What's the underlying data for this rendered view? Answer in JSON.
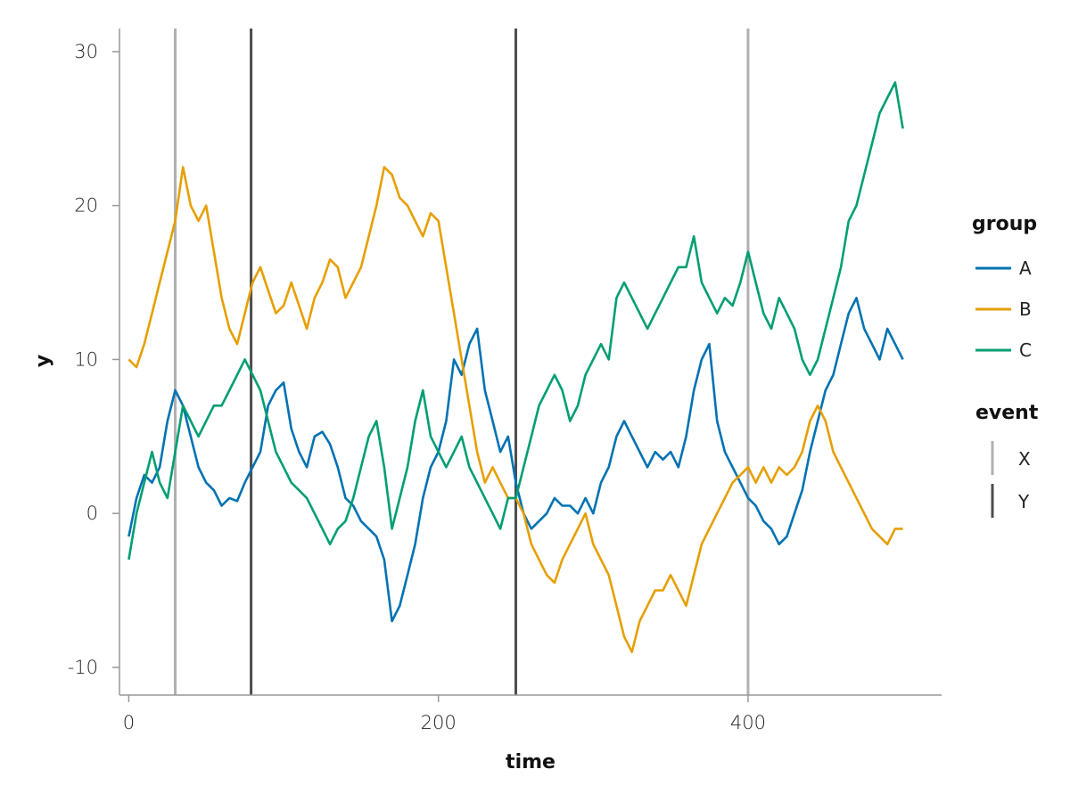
{
  "chart_data": {
    "type": "line",
    "xlabel": "time",
    "ylabel": "y",
    "xlim": [
      -6,
      525
    ],
    "ylim": [
      -11.8,
      31.5
    ],
    "xticks": [
      0,
      200,
      400
    ],
    "yticks": [
      -10,
      0,
      10,
      20,
      30
    ],
    "ytick_labels": [
      "-10",
      "0",
      "10",
      "20",
      "30"
    ],
    "grid": false,
    "legend_position": "right",
    "legends": [
      {
        "title": "group",
        "kind": "line",
        "entries": [
          "A",
          "B",
          "C"
        ]
      },
      {
        "title": "event",
        "kind": "vline",
        "entries": [
          "X",
          "Y"
        ]
      }
    ],
    "series": [
      {
        "name": "A",
        "color": "#0072B2",
        "x": [
          0,
          5,
          10,
          15,
          20,
          25,
          30,
          35,
          40,
          45,
          50,
          55,
          60,
          65,
          70,
          75,
          80,
          85,
          90,
          95,
          100,
          105,
          110,
          115,
          120,
          125,
          130,
          135,
          140,
          145,
          150,
          155,
          160,
          165,
          170,
          175,
          180,
          185,
          190,
          195,
          200,
          205,
          210,
          215,
          220,
          225,
          230,
          235,
          240,
          245,
          250,
          255,
          260,
          265,
          270,
          275,
          280,
          285,
          290,
          295,
          300,
          305,
          310,
          315,
          320,
          325,
          330,
          335,
          340,
          345,
          350,
          355,
          360,
          365,
          370,
          375,
          380,
          385,
          390,
          395,
          400,
          405,
          410,
          415,
          420,
          425,
          430,
          435,
          440,
          445,
          450,
          455,
          460,
          465,
          470,
          475,
          480,
          485,
          490,
          495,
          500
        ],
        "values": [
          -1.5,
          1,
          2.5,
          2,
          3,
          6,
          8,
          7,
          5,
          3,
          2,
          1.5,
          0.5,
          1,
          0.8,
          2,
          3,
          4,
          7,
          8,
          8.5,
          5.5,
          4,
          3,
          5,
          5.3,
          4.5,
          3,
          1,
          0.5,
          -0.5,
          -1,
          -1.5,
          -3,
          -7,
          -6,
          -4,
          -2,
          1,
          3,
          4,
          6,
          10,
          9,
          11,
          12,
          8,
          6,
          4,
          5,
          2,
          0,
          -1,
          -0.5,
          0,
          1,
          0.5,
          0.5,
          0,
          1,
          0,
          2,
          3,
          5,
          6,
          5,
          4,
          3,
          4,
          3.5,
          4,
          3,
          5,
          8,
          10,
          11,
          6,
          4,
          3,
          2,
          1,
          0.5,
          -0.5,
          -1,
          -2,
          -1.5,
          0,
          1.5,
          4,
          6,
          8,
          9,
          11,
          13,
          14,
          12,
          11,
          10,
          12,
          11,
          10
        ]
      },
      {
        "name": "B",
        "color": "#E69F00",
        "x": [
          0,
          5,
          10,
          15,
          20,
          25,
          30,
          35,
          40,
          45,
          50,
          55,
          60,
          65,
          70,
          75,
          80,
          85,
          90,
          95,
          100,
          105,
          110,
          115,
          120,
          125,
          130,
          135,
          140,
          145,
          150,
          155,
          160,
          165,
          170,
          175,
          180,
          185,
          190,
          195,
          200,
          205,
          210,
          215,
          220,
          225,
          230,
          235,
          240,
          245,
          250,
          255,
          260,
          265,
          270,
          275,
          280,
          285,
          290,
          295,
          300,
          305,
          310,
          315,
          320,
          325,
          330,
          335,
          340,
          345,
          350,
          355,
          360,
          365,
          370,
          375,
          380,
          385,
          390,
          395,
          400,
          405,
          410,
          415,
          420,
          425,
          430,
          435,
          440,
          445,
          450,
          455,
          460,
          465,
          470,
          475,
          480,
          485,
          490,
          495,
          500
        ],
        "values": [
          10,
          9.5,
          11,
          13,
          15,
          17,
          19,
          22.5,
          20,
          19,
          20,
          17,
          14,
          12,
          11,
          13,
          15,
          16,
          14.5,
          13,
          13.5,
          15,
          13.5,
          12,
          14,
          15,
          16.5,
          16,
          14,
          15,
          16,
          18,
          20,
          22.5,
          22,
          20.5,
          20,
          19,
          18,
          19.5,
          19,
          16,
          13,
          10,
          7,
          4,
          2,
          3,
          2,
          1,
          1,
          0,
          -2,
          -3,
          -4,
          -4.5,
          -3,
          -2,
          -1,
          0,
          -2,
          -3,
          -4,
          -6,
          -8,
          -9,
          -7,
          -6,
          -5,
          -5,
          -4,
          -5,
          -6,
          -4,
          -2,
          -1,
          0,
          1,
          2,
          2.5,
          3,
          2,
          3,
          2,
          3,
          2.5,
          3,
          4,
          6,
          7,
          6,
          4,
          3,
          2,
          1,
          0,
          -1,
          -1.5,
          -2,
          -1,
          -1
        ]
      },
      {
        "name": "C",
        "color": "#009E73",
        "x": [
          0,
          5,
          10,
          15,
          20,
          25,
          30,
          35,
          40,
          45,
          50,
          55,
          60,
          65,
          70,
          75,
          80,
          85,
          90,
          95,
          100,
          105,
          110,
          115,
          120,
          125,
          130,
          135,
          140,
          145,
          150,
          155,
          160,
          165,
          170,
          175,
          180,
          185,
          190,
          195,
          200,
          205,
          210,
          215,
          220,
          225,
          230,
          235,
          240,
          245,
          250,
          255,
          260,
          265,
          270,
          275,
          280,
          285,
          290,
          295,
          300,
          305,
          310,
          315,
          320,
          325,
          330,
          335,
          340,
          345,
          350,
          355,
          360,
          365,
          370,
          375,
          380,
          385,
          390,
          395,
          400,
          405,
          410,
          415,
          420,
          425,
          430,
          435,
          440,
          445,
          450,
          455,
          460,
          465,
          470,
          475,
          480,
          485,
          490,
          495,
          500
        ],
        "values": [
          -3,
          0,
          2,
          4,
          2,
          1,
          4,
          7,
          6,
          5,
          6,
          7,
          7,
          8,
          9,
          10,
          9,
          8,
          6,
          4,
          3,
          2,
          1.5,
          1,
          0,
          -1,
          -2,
          -1,
          -0.5,
          1,
          3,
          5,
          6,
          3,
          -1,
          1,
          3,
          6,
          8,
          5,
          4,
          3,
          4,
          5,
          3,
          2,
          1,
          0,
          -1,
          1,
          1,
          3,
          5,
          7,
          8,
          9,
          8,
          6,
          7,
          9,
          10,
          11,
          10,
          14,
          15,
          14,
          13,
          12,
          13,
          14,
          15,
          16,
          16,
          18,
          15,
          14,
          13,
          14,
          13.5,
          15,
          17,
          15,
          13,
          12,
          14,
          13,
          12,
          10,
          9,
          10,
          12,
          14,
          16,
          19,
          20,
          22,
          24,
          26,
          27,
          28,
          25
        ]
      }
    ],
    "events": [
      {
        "name": "X",
        "x": 30,
        "color": "#B0B0B0"
      },
      {
        "name": "Y",
        "x": 79,
        "color": "#4D4D4D"
      },
      {
        "name": "Y",
        "x": 250,
        "color": "#4D4D4D"
      },
      {
        "name": "X",
        "x": 400,
        "color": "#B0B0B0"
      }
    ]
  }
}
